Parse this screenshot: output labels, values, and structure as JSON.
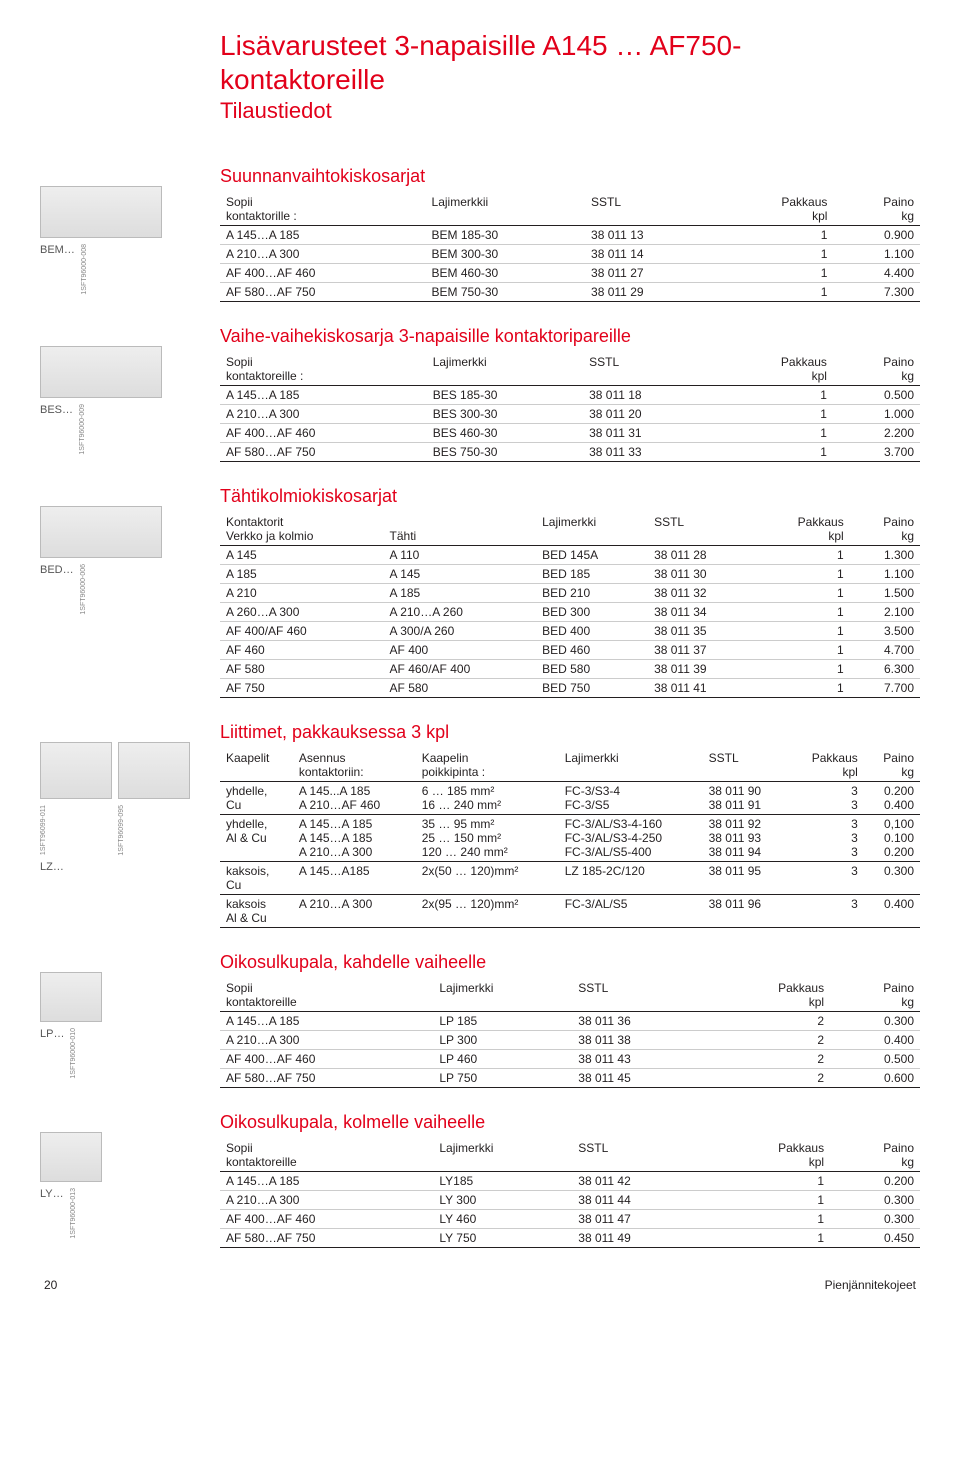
{
  "page_title_line1": "Lisävarusteet 3-napaisille A145 … AF750-",
  "page_title_line2": "kontaktoreille",
  "subtitle": "Tilaustiedot",
  "footer_page": "20",
  "footer_book": "Pienjännitekojeet",
  "sections": {
    "bem": {
      "heading": "Suunnanvaihtokiskosarjat",
      "img_label": "BEM…",
      "side_code": "1SFT96000-008",
      "headers": [
        "Sopii\nkontaktorille :",
        "Lajimerkkii",
        "SSTL",
        "Pakkaus\nkpl",
        "Paino\nkg"
      ],
      "rows": [
        [
          "A 145…A 185",
          "BEM 185-30",
          "38 011 13",
          "1",
          "0.900"
        ],
        [
          "A 210…A 300",
          "BEM 300-30",
          "38 011 14",
          "1",
          "1.100"
        ],
        [
          "AF 400…AF 460",
          "BEM 460-30",
          "38 011 27",
          "1",
          "4.400"
        ],
        [
          "AF 580…AF 750",
          "BEM 750-30",
          "38 011 29",
          "1",
          "7.300"
        ]
      ]
    },
    "bes": {
      "heading": "Vaihe-vaihekiskosarja 3-napaisille kontaktoripareille",
      "img_label": "BES…",
      "side_code": "1SFT96000-009",
      "headers": [
        "Sopii\nkontaktoreille :",
        "Lajimerkki",
        "SSTL",
        "Pakkaus\nkpl",
        "Paino\nkg"
      ],
      "rows": [
        [
          "A 145…A 185",
          "BES 185-30",
          "38 011 18",
          "1",
          "0.500"
        ],
        [
          "A 210…A 300",
          "BES 300-30",
          "38 011 20",
          "1",
          "1.000"
        ],
        [
          "AF 400…AF 460",
          "BES 460-30",
          "38 011 31",
          "1",
          "2.200"
        ],
        [
          "AF 580…AF 750",
          "BES 750-30",
          "38 011 33",
          "1",
          "3.700"
        ]
      ]
    },
    "bed": {
      "heading": "Tähtikolmiokiskosarjat",
      "img_label": "BED…",
      "side_code": "1SFT96000-006",
      "headers": [
        "Kontaktorit\nVerkko ja kolmio",
        "\nTähti",
        "Lajimerkki",
        "SSTL",
        "Pakkaus\nkpl",
        "Paino\nkg"
      ],
      "rows": [
        [
          "A 145",
          "A 110",
          "BED 145A",
          "38 011 28",
          "1",
          "1.300"
        ],
        [
          "A 185",
          "A 145",
          "BED 185",
          "38 011 30",
          "1",
          "1.100"
        ],
        [
          "A 210",
          "A 185",
          "BED 210",
          "38 011 32",
          "1",
          "1.500"
        ],
        [
          "A 260…A 300",
          "A 210…A 260",
          "BED 300",
          "38 011 34",
          "1",
          "2.100"
        ],
        [
          "AF 400/AF 460",
          "A 300/A 260",
          "BED 400",
          "38 011 35",
          "1",
          "3.500"
        ],
        [
          "AF 460",
          "AF 400",
          "BED 460",
          "38 011 37",
          "1",
          "4.700"
        ],
        [
          "AF 580",
          "AF 460/AF 400",
          "BED 580",
          "38 011 39",
          "1",
          "6.300"
        ],
        [
          "AF 750",
          "AF 580",
          "BED 750",
          "38 011 41",
          "1",
          "7.700"
        ]
      ]
    },
    "lz": {
      "heading": "Liittimet, pakkauksessa 3 kpl",
      "img_label": "LZ…",
      "side_code1": "1SFT96099-011",
      "side_code2": "1SFT96099-095",
      "headers": [
        "Kaapelit",
        "Asennus\nkontaktoriin:",
        "Kaapelin\npoikkipinta :",
        "Lajimerkki",
        "SSTL",
        "Pakkaus\nkpl",
        "Paino\nkg"
      ],
      "rows": [
        [
          "yhdelle,\nCu",
          "A 145...A 185\nA 210…AF 460",
          "6 … 185 mm²\n16 … 240 mm²",
          "FC-3/S3-4\nFC-3/S5",
          "38 011 90\n38 011 91",
          "3\n3",
          "0.200\n0.400"
        ],
        [
          "yhdelle,\nAl & Cu",
          "A 145…A 185\nA 145…A 185\nA 210…A 300",
          "35 …  95 mm²\n25 … 150 mm²\n120 … 240 mm²",
          "FC-3/AL/S3-4-160\nFC-3/AL/S3-4-250\nFC-3/AL/S5-400",
          "38 011 92\n38 011 93\n38 011 94",
          "3\n3\n3",
          "0,100\n0.100\n0.200"
        ],
        [
          "kaksois,\nCu",
          "A 145…A185",
          "2x(50 … 120)mm²",
          "LZ 185-2C/120",
          "38 011 95",
          "3",
          "0.300"
        ],
        [
          "kaksois\nAl & Cu",
          "A 210…A 300",
          "2x(95 … 120)mm²",
          "FC-3/AL/S5",
          "38 011 96",
          "3",
          "0.400"
        ]
      ]
    },
    "lp": {
      "heading": "Oikosulkupala, kahdelle vaiheelle",
      "img_label": "LP…",
      "side_code": "1SFT96000-010",
      "headers": [
        "Sopii\nkontaktoreille",
        "Lajimerkki",
        "SSTL",
        "Pakkaus\nkpl",
        "Paino\nkg"
      ],
      "rows": [
        [
          "A 145…A 185",
          "LP 185",
          "38 011 36",
          "2",
          "0.300"
        ],
        [
          "A 210…A 300",
          "LP 300",
          "38 011 38",
          "2",
          "0.400"
        ],
        [
          "AF 400…AF 460",
          "LP 460",
          "38 011 43",
          "2",
          "0.500"
        ],
        [
          "AF 580…AF 750",
          "LP 750",
          "38 011 45",
          "2",
          "0.600"
        ]
      ]
    },
    "ly": {
      "heading": "Oikosulkupala, kolmelle vaiheelle",
      "img_label": "LY…",
      "side_code": "1SFT96000-013",
      "headers": [
        "Sopii\nkontaktoreille",
        "Lajimerkki",
        "SSTL",
        "Pakkaus\nkpl",
        "Paino\nkg"
      ],
      "rows": [
        [
          "A 145…A 185",
          "LY185",
          "38 011 42",
          "1",
          "0.200"
        ],
        [
          "A 210…A 300",
          "LY 300",
          "38 011 44",
          "1",
          "0.300"
        ],
        [
          "AF 400…AF 460",
          "LY 460",
          "38 011 47",
          "1",
          "0.300"
        ],
        [
          "AF 580…AF 750",
          "LY 750",
          "38 011 49",
          "1",
          "0.450"
        ]
      ]
    }
  }
}
